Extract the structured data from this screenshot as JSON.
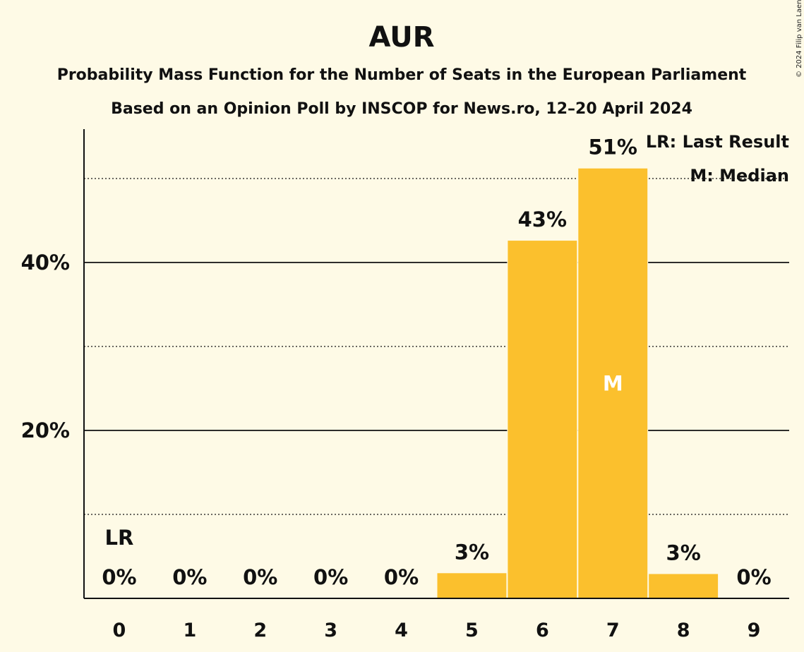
{
  "title": "AUR",
  "subtitle1": "Probability Mass Function for the Number of Seats in the European Parliament",
  "subtitle2": "Based on an Opinion Poll by INSCOP for News.ro, 12–20 April 2024",
  "copyright": "© 2024 Filip van Laenen",
  "legend": {
    "last_result": "LR: Last Result",
    "median": "M: Median"
  },
  "markers": {
    "last_result_label": "LR",
    "median_label": "M",
    "last_result_seats": 0,
    "median_seats": 7
  },
  "colors": {
    "background": "#fefae6",
    "bar": "#fbc02d",
    "text": "#111111"
  },
  "chart_data": {
    "type": "bar",
    "categories": [
      "0",
      "1",
      "2",
      "3",
      "4",
      "5",
      "6",
      "7",
      "8",
      "9"
    ],
    "values": [
      0,
      0,
      0,
      0,
      0,
      3,
      42.6,
      51.2,
      2.9,
      0
    ],
    "data_labels": [
      "0%",
      "0%",
      "0%",
      "0%",
      "0%",
      "3%",
      "43%",
      "51%",
      "3%",
      "0%"
    ],
    "ylim": [
      0,
      56
    ],
    "yticks_major": [
      20,
      40
    ],
    "ytick_labels": [
      "20%",
      "40%"
    ],
    "yticks_minor": [
      10,
      30,
      50
    ],
    "grid": true
  }
}
